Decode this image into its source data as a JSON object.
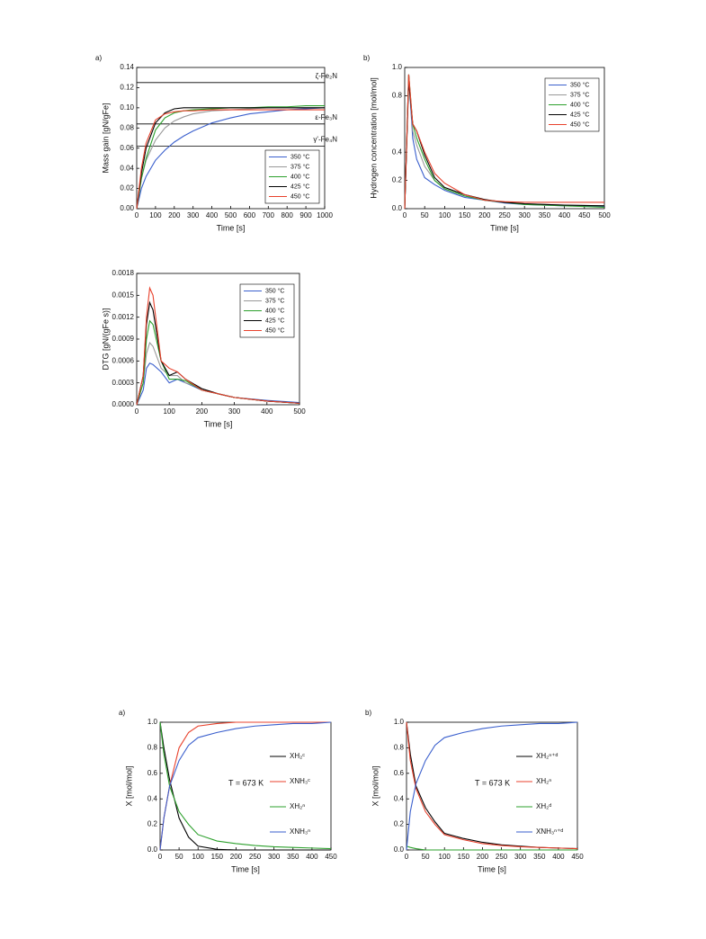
{
  "chart_data": [
    {
      "type": "line",
      "panel_label": "a)",
      "x_label": "Time [s]",
      "y_label": "Mass gain [gN/gFe]",
      "x": [
        0,
        25,
        50,
        100,
        150,
        200,
        250,
        300,
        400,
        500,
        600,
        700,
        800,
        900,
        1000
      ],
      "xlim": [
        0,
        1000
      ],
      "xticks": [
        0,
        100,
        200,
        300,
        400,
        500,
        600,
        700,
        800,
        900,
        1000
      ],
      "ylim": [
        0,
        0.14
      ],
      "yticks": [
        {
          "value": 0,
          "label": "0.00"
        },
        {
          "value": 0.02,
          "label": "0.02"
        },
        {
          "value": 0.04,
          "label": "0.04"
        },
        {
          "value": 0.06,
          "label": "0.06"
        },
        {
          "value": 0.08,
          "label": "0.08"
        },
        {
          "value": 0.1,
          "label": "0.10"
        },
        {
          "value": 0.12,
          "label": "0.12"
        },
        {
          "value": 0.14,
          "label": "0.14"
        }
      ],
      "reference_lines": [
        {
          "value": 0.125,
          "label": "ζ-Fe₂N"
        },
        {
          "value": 0.084,
          "label": "ε-Fe₃N"
        },
        {
          "value": 0.062,
          "label": "γ'-Fe₄N"
        }
      ],
      "legend": "lower right",
      "series": [
        {
          "name": "350 °C",
          "color": "#3a5fcd",
          "values": [
            0,
            0.02,
            0.032,
            0.048,
            0.058,
            0.066,
            0.072,
            0.077,
            0.085,
            0.09,
            0.094,
            0.096,
            0.098,
            0.099,
            0.1
          ]
        },
        {
          "name": "375 °C",
          "color": "#999999",
          "values": [
            0,
            0.03,
            0.048,
            0.068,
            0.08,
            0.087,
            0.091,
            0.094,
            0.097,
            0.098,
            0.099,
            0.1,
            0.1,
            0.1,
            0.1
          ]
        },
        {
          "name": "400 °C",
          "color": "#2ca02c",
          "values": [
            0,
            0.03,
            0.05,
            0.078,
            0.09,
            0.095,
            0.097,
            0.098,
            0.099,
            0.1,
            0.1,
            0.101,
            0.101,
            0.102,
            0.102
          ]
        },
        {
          "name": "425 °C",
          "color": "#000000",
          "values": [
            0,
            0.035,
            0.06,
            0.085,
            0.095,
            0.099,
            0.1,
            0.1,
            0.1,
            0.1,
            0.1,
            0.1,
            0.1,
            0.1,
            0.1
          ]
        },
        {
          "name": "450 °C",
          "color": "#e8412c",
          "values": [
            0,
            0.04,
            0.065,
            0.088,
            0.094,
            0.096,
            0.097,
            0.097,
            0.098,
            0.098,
            0.098,
            0.098,
            0.098,
            0.098,
            0.098
          ]
        }
      ]
    },
    {
      "type": "line",
      "panel_label": "b)",
      "x_label": "Time [s]",
      "y_label": "Hydrogen concentration [mol/mol]",
      "x": [
        0,
        10,
        20,
        30,
        50,
        75,
        100,
        150,
        200,
        250,
        300,
        400,
        500
      ],
      "xlim": [
        0,
        500
      ],
      "xticks": [
        0,
        50,
        100,
        150,
        200,
        250,
        300,
        350,
        400,
        450,
        500
      ],
      "ylim": [
        0,
        1
      ],
      "yticks": [
        {
          "value": 0,
          "label": "0.0"
        },
        {
          "value": 0.2,
          "label": "0.2"
        },
        {
          "value": 0.4,
          "label": "0.4"
        },
        {
          "value": 0.8,
          "label": "0.8"
        },
        {
          "value": 1,
          "label": "1.0"
        }
      ],
      "legend": "upper right",
      "series": [
        {
          "name": "350 °C",
          "color": "#3a5fcd",
          "values": [
            0,
            0.95,
            0.5,
            0.35,
            0.22,
            0.17,
            0.13,
            0.08,
            0.06,
            0.04,
            0.03,
            0.02,
            0.015
          ]
        },
        {
          "name": "375 °C",
          "color": "#999999",
          "values": [
            0,
            0.95,
            0.55,
            0.45,
            0.3,
            0.2,
            0.14,
            0.09,
            0.06,
            0.045,
            0.035,
            0.025,
            0.02
          ]
        },
        {
          "name": "400 °C",
          "color": "#2ca02c",
          "values": [
            0,
            0.95,
            0.6,
            0.5,
            0.35,
            0.2,
            0.14,
            0.09,
            0.06,
            0.045,
            0.03,
            0.02,
            0.01
          ]
        },
        {
          "name": "425 °C",
          "color": "#000000",
          "values": [
            0,
            0.9,
            0.6,
            0.55,
            0.38,
            0.22,
            0.15,
            0.1,
            0.065,
            0.045,
            0.035,
            0.025,
            0.02
          ]
        },
        {
          "name": "450 °C",
          "color": "#e8412c",
          "values": [
            0,
            0.95,
            0.6,
            0.55,
            0.4,
            0.25,
            0.18,
            0.1,
            0.06,
            0.05,
            0.045,
            0.045,
            0.045
          ]
        }
      ]
    },
    {
      "type": "line",
      "x_label": "Time [s]",
      "y_label": "DTG [gN/(gFe s)]",
      "x": [
        0,
        20,
        30,
        40,
        50,
        75,
        100,
        125,
        150,
        200,
        250,
        300,
        400,
        500
      ],
      "xlim": [
        0,
        500
      ],
      "xticks": [
        0,
        100,
        200,
        300,
        400,
        500
      ],
      "ylim": [
        0,
        0.0018
      ],
      "yticks": [
        {
          "value": 0,
          "label": "0.0000"
        },
        {
          "value": 0.0003,
          "label": "0.0003"
        },
        {
          "value": 0.0006,
          "label": "0.0006"
        },
        {
          "value": 0.0009,
          "label": "0.0009"
        },
        {
          "value": 0.0012,
          "label": "0.0012"
        },
        {
          "value": 0.0015,
          "label": "0.0015"
        },
        {
          "value": 0.0018,
          "label": "0.0018"
        }
      ],
      "legend": "upper right",
      "series": [
        {
          "name": "350 °C",
          "color": "#3a5fcd",
          "values": [
            0,
            0.0002,
            0.0005,
            0.00057,
            0.00055,
            0.00045,
            0.0003,
            0.00035,
            0.0003,
            0.0002,
            0.00015,
            0.0001,
            6e-05,
            3e-05
          ]
        },
        {
          "name": "375 °C",
          "color": "#999999",
          "values": [
            0,
            0.0003,
            0.0007,
            0.00085,
            0.0008,
            0.0005,
            0.0004,
            0.0004,
            0.0003,
            0.00022,
            0.00015,
            0.0001,
            5e-05,
            2e-05
          ]
        },
        {
          "name": "400 °C",
          "color": "#2ca02c",
          "values": [
            0,
            0.0003,
            0.0009,
            0.00115,
            0.0011,
            0.0006,
            0.00035,
            0.00035,
            0.00033,
            0.0002,
            0.00015,
            0.0001,
            5e-05,
            2e-05
          ]
        },
        {
          "name": "425 °C",
          "color": "#000000",
          "values": [
            0,
            0.0004,
            0.0011,
            0.0014,
            0.0013,
            0.0006,
            0.0004,
            0.00045,
            0.00035,
            0.00022,
            0.00015,
            0.0001,
            5e-05,
            2e-05
          ]
        },
        {
          "name": "450 °C",
          "color": "#e8412c",
          "values": [
            0,
            0.0004,
            0.0012,
            0.0016,
            0.0015,
            0.0006,
            0.0005,
            0.00045,
            0.00035,
            0.0002,
            0.00015,
            0.0001,
            5e-05,
            2e-05
          ]
        }
      ]
    },
    {
      "type": "line",
      "panel_label": "a)",
      "x_label": "Time [s]",
      "y_label": "X [mol/mol]",
      "annotation": "T = 673 K",
      "x": [
        0,
        10,
        25,
        50,
        75,
        100,
        150,
        200,
        250,
        300,
        350,
        400,
        450
      ],
      "xlim": [
        0,
        450
      ],
      "xticks": [
        0,
        50,
        100,
        150,
        200,
        250,
        300,
        350,
        400,
        450
      ],
      "ylim": [
        0,
        1
      ],
      "yticks": [
        {
          "value": 0,
          "label": "0.0"
        },
        {
          "value": 0.2,
          "label": "0.2"
        },
        {
          "value": 0.4,
          "label": "0.4"
        },
        {
          "value": 0.6,
          "label": "0.6"
        },
        {
          "value": 0.8,
          "label": "0.8"
        },
        {
          "value": 1,
          "label": "1.0"
        }
      ],
      "legend": "right",
      "series": [
        {
          "name": "XH₂ᶜ",
          "color": "#000000",
          "values": [
            1,
            0.8,
            0.55,
            0.25,
            0.1,
            0.03,
            0.005,
            0,
            0,
            0,
            0,
            0,
            0
          ]
        },
        {
          "name": "XNH₃ᶜ",
          "color": "#e8412c",
          "values": [
            0,
            0.25,
            0.5,
            0.8,
            0.92,
            0.97,
            0.99,
            1,
            1,
            1,
            1,
            1,
            1
          ]
        },
        {
          "name": "XH₂ⁿ",
          "color": "#2ca02c",
          "values": [
            1,
            0.75,
            0.5,
            0.3,
            0.2,
            0.12,
            0.07,
            0.05,
            0.035,
            0.025,
            0.02,
            0.015,
            0.01
          ]
        },
        {
          "name": "XNH₃ⁿ",
          "color": "#3a5fcd",
          "values": [
            0,
            0.25,
            0.5,
            0.7,
            0.82,
            0.88,
            0.92,
            0.95,
            0.97,
            0.98,
            0.99,
            0.99,
            1
          ]
        }
      ]
    },
    {
      "type": "line",
      "panel_label": "b)",
      "x_label": "Time [s]",
      "y_label": "X [mol/mol]",
      "annotation": "T = 673 K",
      "x": [
        0,
        10,
        25,
        50,
        75,
        100,
        150,
        200,
        250,
        300,
        350,
        400,
        450
      ],
      "xlim": [
        0,
        450
      ],
      "xticks": [
        0,
        50,
        100,
        150,
        200,
        250,
        300,
        350,
        400,
        450
      ],
      "ylim": [
        0,
        1
      ],
      "yticks": [
        {
          "value": 0,
          "label": "0.0"
        },
        {
          "value": 0.2,
          "label": "0.2"
        },
        {
          "value": 0.4,
          "label": "0.4"
        },
        {
          "value": 0.6,
          "label": "0.6"
        },
        {
          "value": 0.8,
          "label": "0.8"
        },
        {
          "value": 1,
          "label": "1.0"
        }
      ],
      "legend": "right",
      "series": [
        {
          "name": "XH₂ⁿ⁺ᵈ",
          "color": "#000000",
          "values": [
            1,
            0.75,
            0.5,
            0.33,
            0.22,
            0.13,
            0.09,
            0.06,
            0.04,
            0.03,
            0.02,
            0.015,
            0.01
          ]
        },
        {
          "name": "XH₂ⁿ",
          "color": "#e8412c",
          "values": [
            1,
            0.7,
            0.48,
            0.3,
            0.2,
            0.12,
            0.08,
            0.05,
            0.035,
            0.025,
            0.02,
            0.015,
            0.01
          ]
        },
        {
          "name": "XH₂ᵈ",
          "color": "#2ca02c",
          "values": [
            0.03,
            0.02,
            0.01,
            0,
            0,
            0,
            0,
            0,
            0,
            0,
            0,
            0,
            0
          ]
        },
        {
          "name": "XNH₃ⁿ⁺ᵈ",
          "color": "#3a5fcd",
          "values": [
            0,
            0.3,
            0.52,
            0.7,
            0.82,
            0.88,
            0.92,
            0.95,
            0.97,
            0.98,
            0.99,
            0.99,
            1
          ]
        }
      ]
    }
  ]
}
